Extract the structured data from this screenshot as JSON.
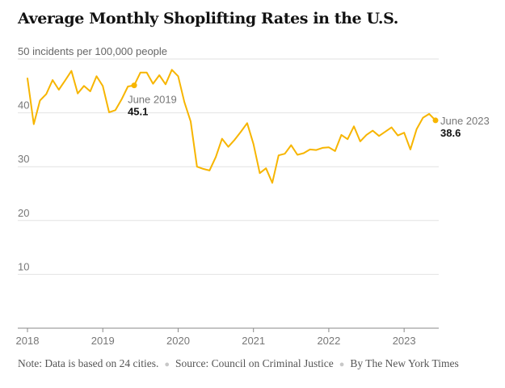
{
  "colors": {
    "line": "#F7B500",
    "grid": "#e2e2e2",
    "axis": "#888888"
  },
  "footer": {
    "note": "Note: Data is based on 24 cities.",
    "source": "Source: Council on Criminal Justice",
    "byline": "By The New York Times"
  },
  "chart_data": {
    "type": "line",
    "title": "Average Monthly Shoplifting Rates in the U.S.",
    "ylabel": "50 incidents per 100,000 people",
    "xlabel": "",
    "ylim": [
      0,
      50
    ],
    "yticks": [
      10,
      20,
      30,
      40
    ],
    "xlim": [
      "2018-01",
      "2023-06"
    ],
    "xtick_labels": [
      "2018",
      "2019",
      "2020",
      "2021",
      "2022",
      "2023"
    ],
    "grid": true,
    "series": [
      {
        "x": [
          "2018-01",
          "2018-02",
          "2018-03",
          "2018-04",
          "2018-05",
          "2018-06",
          "2018-07",
          "2018-08",
          "2018-09",
          "2018-10",
          "2018-11",
          "2018-12",
          "2019-01",
          "2019-02",
          "2019-03",
          "2019-04",
          "2019-05",
          "2019-06",
          "2019-07",
          "2019-08",
          "2019-09",
          "2019-10",
          "2019-11",
          "2019-12",
          "2020-01",
          "2020-02",
          "2020-03",
          "2020-04",
          "2020-05",
          "2020-06",
          "2020-07",
          "2020-08",
          "2020-09",
          "2020-10",
          "2020-11",
          "2020-12",
          "2021-01",
          "2021-02",
          "2021-03",
          "2021-04",
          "2021-05",
          "2021-06",
          "2021-07",
          "2021-08",
          "2021-09",
          "2021-10",
          "2021-11",
          "2021-12",
          "2022-01",
          "2022-02",
          "2022-03",
          "2022-04",
          "2022-05",
          "2022-06",
          "2022-07",
          "2022-08",
          "2022-09",
          "2022-10",
          "2022-11",
          "2022-12",
          "2023-01",
          "2023-02",
          "2023-03",
          "2023-04",
          "2023-05",
          "2023-06"
        ],
        "values": [
          46.4,
          37.9,
          42.3,
          43.5,
          46.1,
          44.3,
          46.0,
          47.8,
          43.6,
          45.0,
          44.0,
          46.8,
          45.0,
          40.1,
          40.5,
          42.5,
          44.9,
          45.1,
          47.5,
          47.5,
          45.4,
          47.0,
          45.3,
          48.0,
          46.8,
          42.0,
          38.4,
          30.0,
          29.6,
          29.3,
          31.8,
          35.2,
          33.7,
          35.0,
          36.5,
          38.1,
          34.2,
          28.8,
          29.7,
          27.0,
          32.1,
          32.4,
          34.0,
          32.2,
          32.5,
          33.2,
          33.1,
          33.5,
          33.6,
          32.9,
          35.9,
          35.1,
          37.5,
          34.7,
          35.9,
          36.7,
          35.7,
          36.5,
          37.3,
          35.8,
          36.3,
          33.2,
          37.0,
          39.1,
          39.8,
          38.6
        ]
      }
    ],
    "annotations": [
      {
        "x": "2019-06",
        "label": "June 2019",
        "value_label": "45.1"
      },
      {
        "x": "2023-06",
        "label": "June 2023",
        "value_label": "38.6"
      }
    ]
  }
}
